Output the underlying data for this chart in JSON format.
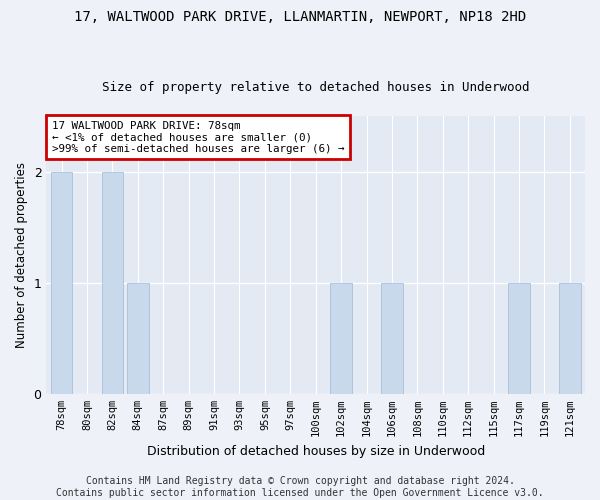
{
  "title": "17, WALTWOOD PARK DRIVE, LLANMARTIN, NEWPORT, NP18 2HD",
  "subtitle": "Size of property relative to detached houses in Underwood",
  "xlabel": "Distribution of detached houses by size in Underwood",
  "ylabel": "Number of detached properties",
  "categories": [
    "78sqm",
    "80sqm",
    "82sqm",
    "84sqm",
    "87sqm",
    "89sqm",
    "91sqm",
    "93sqm",
    "95sqm",
    "97sqm",
    "100sqm",
    "102sqm",
    "104sqm",
    "106sqm",
    "108sqm",
    "110sqm",
    "112sqm",
    "115sqm",
    "117sqm",
    "119sqm",
    "121sqm"
  ],
  "values": [
    2,
    0,
    2,
    1,
    0,
    0,
    0,
    0,
    0,
    0,
    0,
    1,
    0,
    1,
    0,
    0,
    0,
    0,
    1,
    0,
    1
  ],
  "bar_color": "#c9d9ec",
  "bar_edge_color": "#a0b8d8",
  "ylim": [
    0,
    2.5
  ],
  "yticks": [
    0,
    1,
    2
  ],
  "annotation_text": "17 WALTWOOD PARK DRIVE: 78sqm\n← <1% of detached houses are smaller (0)\n>99% of semi-detached houses are larger (6) →",
  "annotation_box_color": "#ffffff",
  "annotation_box_edge_color": "#cc0000",
  "footer_line1": "Contains HM Land Registry data © Crown copyright and database right 2024.",
  "footer_line2": "Contains public sector information licensed under the Open Government Licence v3.0.",
  "background_color": "#eef2f8",
  "plot_background_color": "#e4eaf4",
  "grid_color": "#ffffff",
  "title_fontsize": 10,
  "subtitle_fontsize": 9,
  "ylabel_fontsize": 8.5,
  "xlabel_fontsize": 9,
  "tick_fontsize": 7.5,
  "ytick_fontsize": 9,
  "footer_fontsize": 7.0
}
